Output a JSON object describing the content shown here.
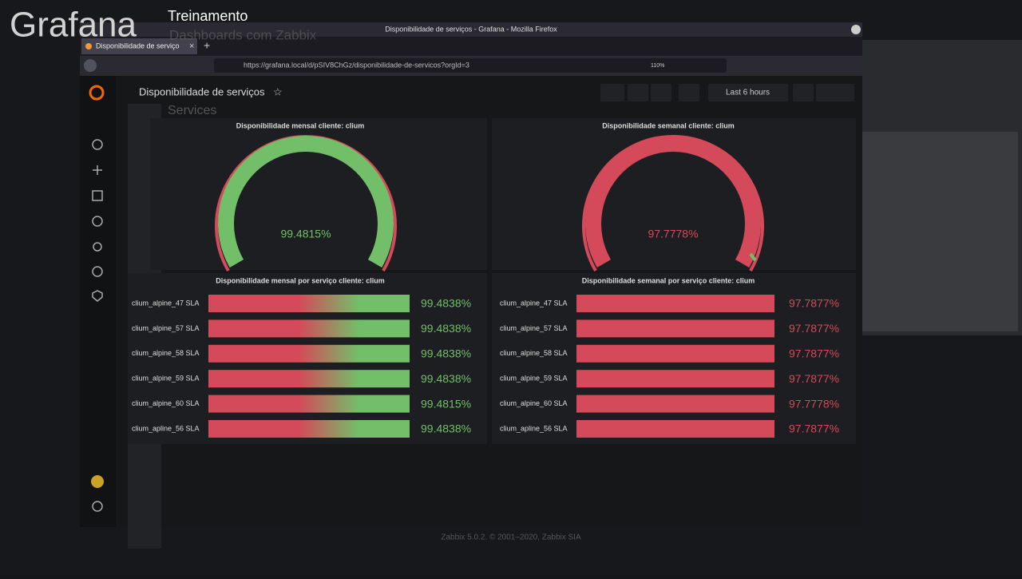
{
  "overlay": {
    "logo": "Grafana",
    "course": "Treinamento",
    "course_sub": "Dashboards com Zabbix"
  },
  "window": {
    "title": "Disponibilidade de serviços - Grafana - Mozilla Firefox",
    "tab": "Disponibilidade de serviço",
    "url": "https://grafana.local/d/pSIV8ChGz/disponibilidade-de-servicos?orgId=3",
    "zoom": "110%"
  },
  "dashboard": {
    "title": "Disponibilidade de serviços",
    "time_range": "Last 6 hours",
    "background_heading": "Services"
  },
  "gauges": [
    {
      "title": "Disponibilidade mensal cliente: clium",
      "value": "99.4815%"
    },
    {
      "title": "Disponibilidade semanal cliente: clium",
      "value": "97.7778%"
    }
  ],
  "bar_panels": [
    {
      "title": "Disponibilidade mensal por serviço cliente: clium",
      "rows": [
        [
          "clium_alpine_47 SLA",
          "99.4838%"
        ],
        [
          "clium_alpine_57 SLA",
          "99.4838%"
        ],
        [
          "clium_alpine_58 SLA",
          "99.4838%"
        ],
        [
          "clium_alpine_59 SLA",
          "99.4838%"
        ],
        [
          "clium_alpine_60 SLA",
          "99.4815%"
        ],
        [
          "clium_apline_56 SLA",
          "99.4838%"
        ]
      ]
    },
    {
      "title": "Disponibilidade semanal por serviço cliente: clium",
      "rows": [
        [
          "clium_alpine_47 SLA",
          "97.7877%"
        ],
        [
          "clium_alpine_57 SLA",
          "97.7877%"
        ],
        [
          "clium_alpine_58 SLA",
          "97.7877%"
        ],
        [
          "clium_alpine_59 SLA",
          "97.7877%"
        ],
        [
          "clium_alpine_60 SLA",
          "97.7778%"
        ],
        [
          "clium_apline_56 SLA",
          "97.7877%"
        ]
      ]
    }
  ],
  "footer": "Zabbix 5.0.2. © 2001–2020, Zabbix SIA"
}
